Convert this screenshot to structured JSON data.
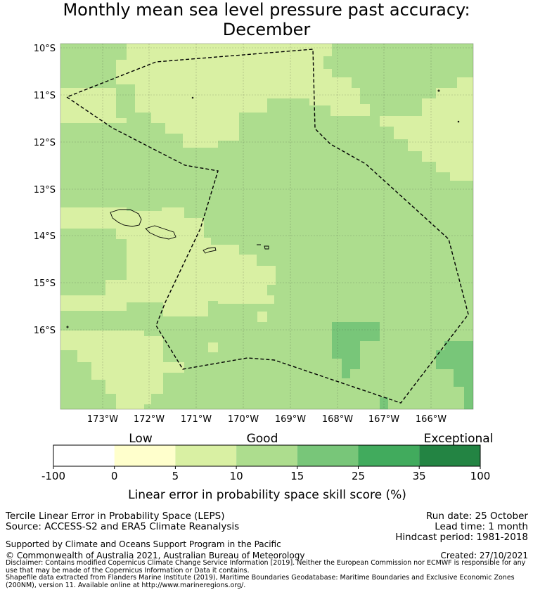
{
  "title": {
    "line1": "Monthly mean sea level pressure past accuracy:",
    "line2": "December"
  },
  "map": {
    "lat_labels": [
      "10°S",
      "11°S",
      "12°S",
      "13°S",
      "14°S",
      "15°S",
      "16°S"
    ],
    "lon_labels": [
      "173°W",
      "172°W",
      "171°W",
      "170°W",
      "169°W",
      "168°W",
      "167°W",
      "166°W"
    ]
  },
  "colorbar": {
    "category_labels": [
      "Low",
      "Good",
      "Exceptional"
    ],
    "ticks": [
      "-100",
      "0",
      "5",
      "10",
      "15",
      "25",
      "35",
      "100"
    ],
    "colors": [
      "#ffffff",
      "#ffffcc",
      "#d9f0a3",
      "#addd8e",
      "#78c679",
      "#41ab5d",
      "#238443"
    ],
    "label": "Linear error in probability space skill score (%)"
  },
  "footer": {
    "method": "Tercile Linear Error in Probability Space (LEPS)",
    "source": "Source: ACCESS-S2 and ERA5 Climate Reanalysis",
    "supported": "Supported by Climate and Oceans Support Program in the Pacific",
    "copyright": "© Commonwealth of Australia 2021, Australian Bureau of Meteorology",
    "run_date": "Run date: 25 October",
    "lead_time": "Lead time: 1 month",
    "hindcast": "Hindcast period: 1981-2018",
    "created": "Created: 27/10/2021",
    "disclaimer": "Disclaimer: Contains modified Copernicus Climate Change Service Information [2019]. Neither the European Commission nor ECMWF is responsible for any use that may be made of the Copernicus Information or Data it contains.",
    "shapefile": "Shapefile data extracted from Flanders Marine Institute (2019), Maritime Boundaries Geodatabase: Maritime Boundaries and Exclusive Economic Zones (200NM), version 11. Available online at http://www.marineregions.org/."
  }
}
